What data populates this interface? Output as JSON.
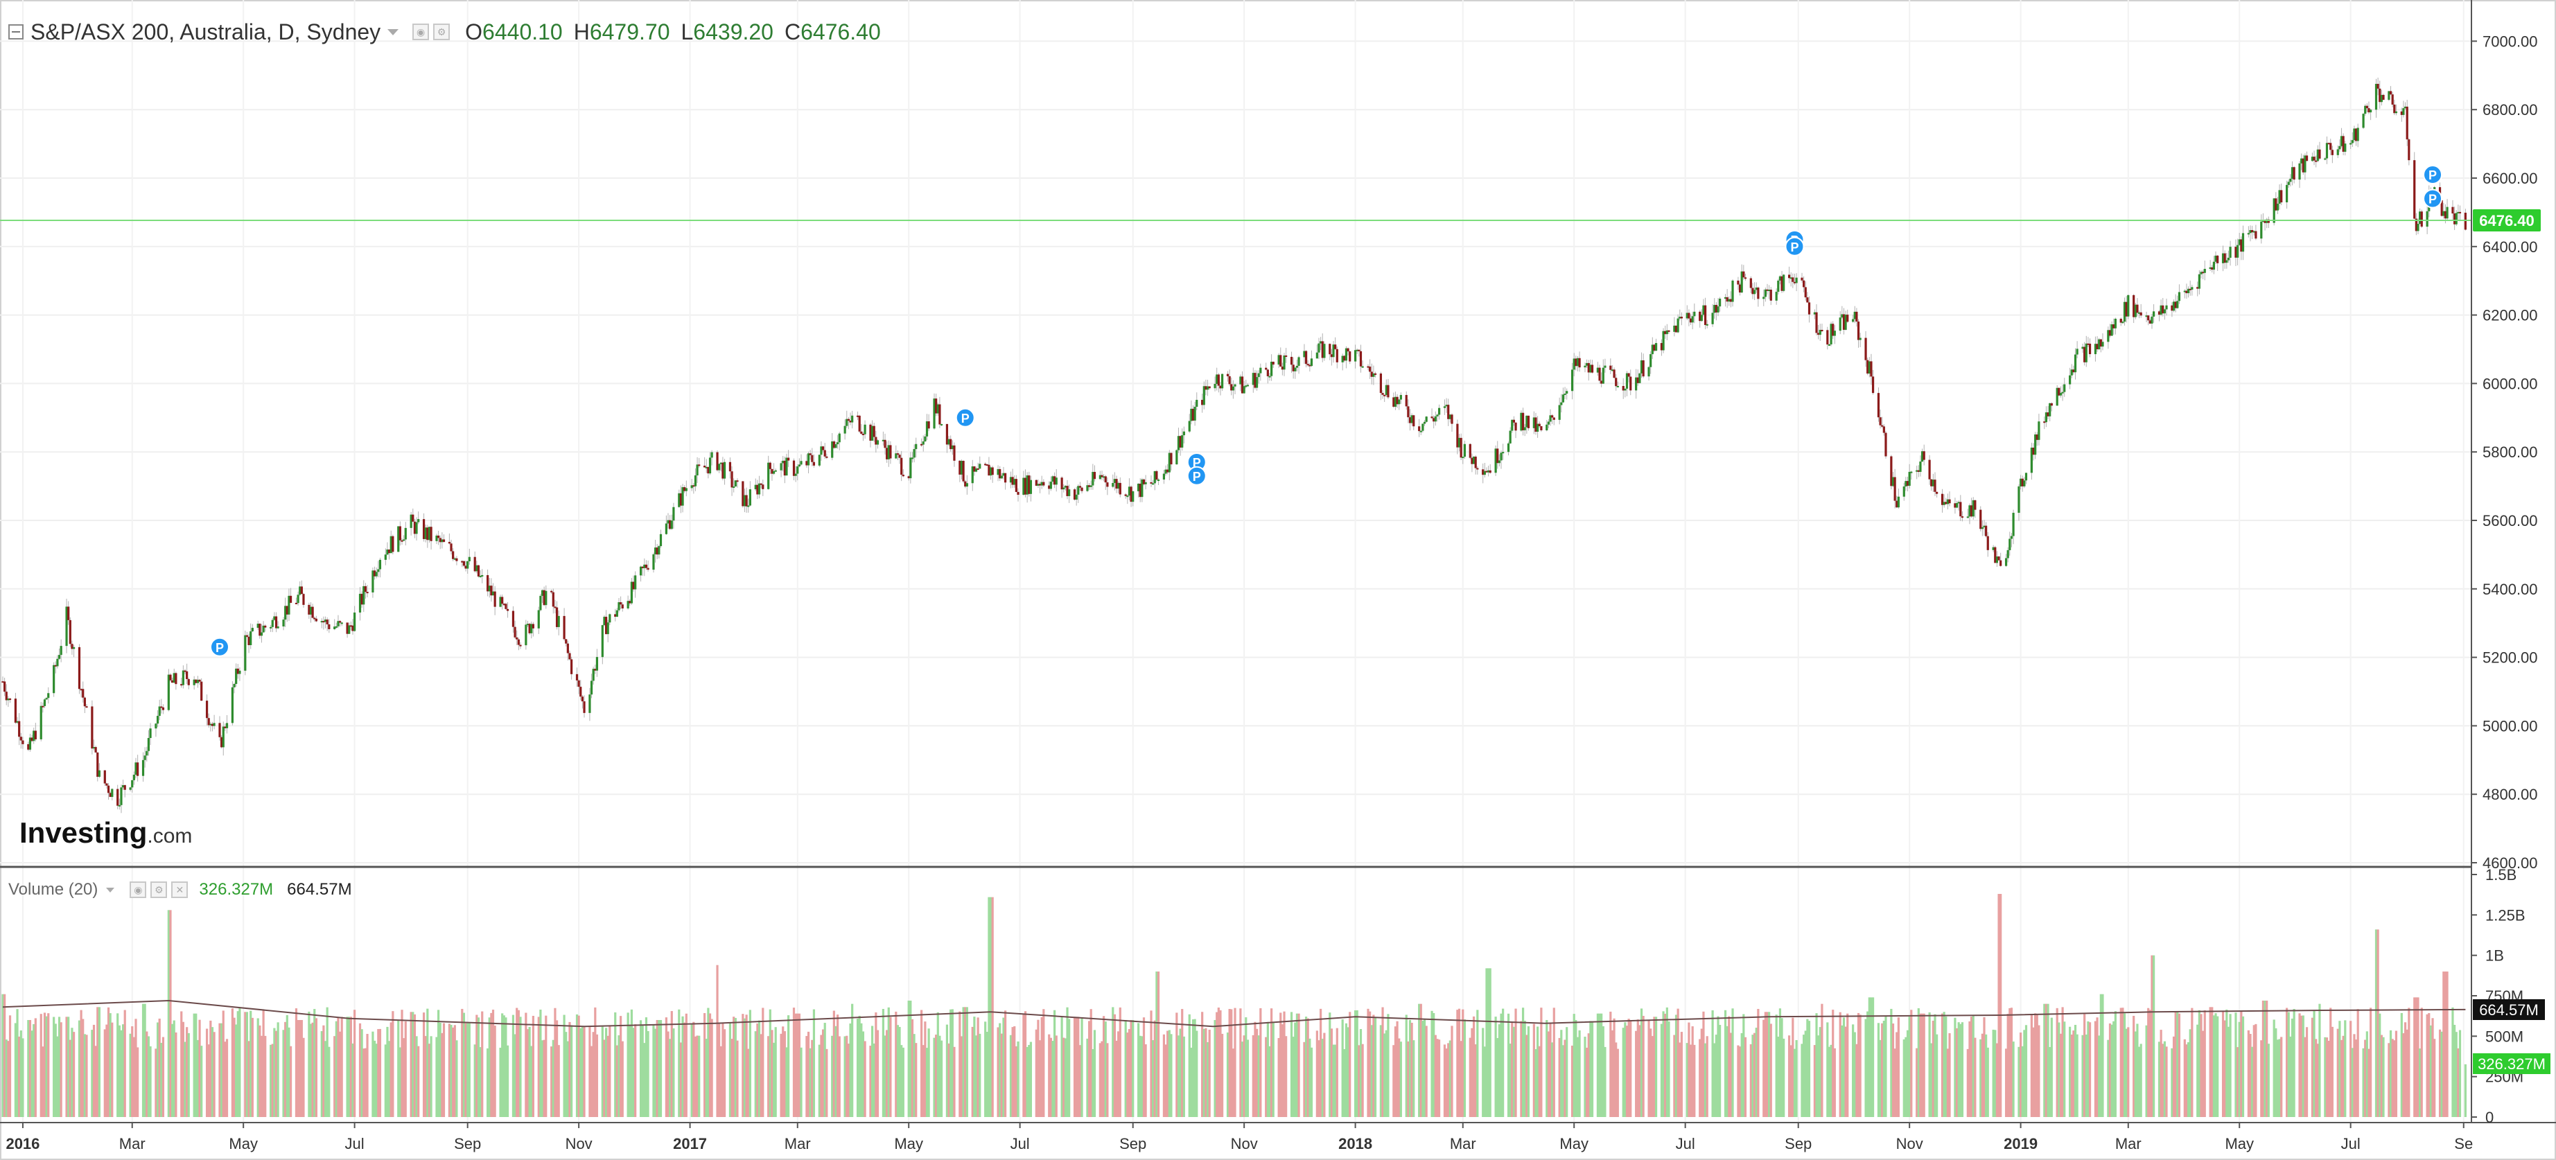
{
  "header": {
    "symbol_title": "S&P/ASX 200, Australia, D, Sydney",
    "ohlc": [
      {
        "label": "O",
        "value": "6440.10"
      },
      {
        "label": "H",
        "value": "6479.70"
      },
      {
        "label": "L",
        "value": "6439.20"
      },
      {
        "label": "C",
        "value": "6476.40"
      }
    ]
  },
  "volume_header": {
    "title": "Volume (20)",
    "current": "326.327M",
    "ma": "664.57M"
  },
  "watermark": {
    "brand": "Investing",
    "suffix": ".com"
  },
  "price_tag": "6476.40",
  "volume_tags": {
    "ma": "664.57M",
    "current": "326.327M"
  },
  "colors": {
    "up": "#2e8b2e",
    "down": "#8b1a1a",
    "vol_up": "#9edc9e",
    "vol_down": "#e8a0a0",
    "last_price_line": "#7cdd7c",
    "tag_green": "#2ecc2e",
    "marker": "#2196f3"
  },
  "chart_data": [
    {
      "type": "candlestick",
      "title": "S&P/ASX 200, Australia, D, Sydney",
      "xlabel": "",
      "ylabel": "",
      "x_ticks": [
        "2016",
        "Mar",
        "May",
        "Jul",
        "Sep",
        "Nov",
        "2017",
        "Mar",
        "May",
        "Jul",
        "Sep",
        "Nov",
        "2018",
        "Mar",
        "May",
        "Jul",
        "Sep",
        "Nov",
        "2019",
        "Mar",
        "May",
        "Jul",
        "Se"
      ],
      "x_range": [
        "2015-12-21",
        "2019-09-03"
      ],
      "y_ticks": [
        7000,
        6800,
        6600,
        6400,
        6200,
        6000,
        5800,
        5600,
        5400,
        5200,
        5000,
        4800,
        4600
      ],
      "ylim": [
        4600,
        7100
      ],
      "grid": true,
      "last_price": 6476.4,
      "series": [
        {
          "name": "S&P/ASX 200",
          "x": [
            "2015-12-21",
            "2016-01-04",
            "2016-01-18",
            "2016-01-25",
            "2016-02-12",
            "2016-02-22",
            "2016-03-07",
            "2016-03-21",
            "2016-04-04",
            "2016-04-18",
            "2016-05-02",
            "2016-05-16",
            "2016-06-01",
            "2016-06-15",
            "2016-06-28",
            "2016-07-15",
            "2016-08-01",
            "2016-08-15",
            "2016-09-01",
            "2016-09-15",
            "2016-10-01",
            "2016-10-15",
            "2016-11-04",
            "2016-11-15",
            "2016-12-01",
            "2016-12-15",
            "2017-01-01",
            "2017-01-15",
            "2017-02-01",
            "2017-02-15",
            "2017-03-01",
            "2017-03-15",
            "2017-04-01",
            "2017-04-15",
            "2017-05-01",
            "2017-05-15",
            "2017-06-01",
            "2017-06-15",
            "2017-07-01",
            "2017-07-15",
            "2017-08-01",
            "2017-08-15",
            "2017-09-01",
            "2017-09-15",
            "2017-10-01",
            "2017-10-15",
            "2017-11-01",
            "2017-11-15",
            "2017-12-01",
            "2017-12-15",
            "2018-01-01",
            "2018-01-15",
            "2018-02-05",
            "2018-02-20",
            "2018-03-01",
            "2018-03-15",
            "2018-04-01",
            "2018-04-15",
            "2018-05-01",
            "2018-05-15",
            "2018-06-01",
            "2018-06-15",
            "2018-07-01",
            "2018-07-15",
            "2018-08-01",
            "2018-08-15",
            "2018-08-30",
            "2018-09-15",
            "2018-10-01",
            "2018-10-11",
            "2018-10-25",
            "2018-11-08",
            "2018-11-21",
            "2018-12-07",
            "2018-12-21",
            "2019-01-04",
            "2019-01-15",
            "2019-02-01",
            "2019-02-15",
            "2019-03-01",
            "2019-03-15",
            "2019-04-01",
            "2019-04-15",
            "2019-05-01",
            "2019-05-15",
            "2019-06-01",
            "2019-06-15",
            "2019-07-01",
            "2019-07-15",
            "2019-07-31",
            "2019-08-06",
            "2019-08-15",
            "2019-08-22",
            "2019-09-02"
          ],
          "close": [
            5130,
            4920,
            5150,
            5320,
            4850,
            4790,
            4900,
            5120,
            5150,
            4940,
            5250,
            5300,
            5380,
            5300,
            5280,
            5500,
            5590,
            5540,
            5480,
            5380,
            5250,
            5400,
            5050,
            5290,
            5400,
            5540,
            5720,
            5780,
            5650,
            5760,
            5750,
            5800,
            5900,
            5830,
            5740,
            5940,
            5720,
            5750,
            5700,
            5720,
            5680,
            5730,
            5680,
            5720,
            5880,
            6020,
            5990,
            6050,
            6060,
            6100,
            6080,
            6000,
            5880,
            5920,
            5800,
            5750,
            5900,
            5850,
            6050,
            6030,
            6000,
            6100,
            6200,
            6200,
            6300,
            6260,
            6320,
            6130,
            6200,
            6020,
            5650,
            5780,
            5640,
            5630,
            5450,
            5760,
            5920,
            6080,
            6120,
            6230,
            6190,
            6260,
            6350,
            6400,
            6480,
            6620,
            6680,
            6700,
            6860,
            6780,
            6450,
            6560,
            6500,
            6460
          ],
          "high": [
            5170,
            4970,
            5190,
            5350,
            4900,
            4830,
            4950,
            5160,
            5200,
            4990,
            5290,
            5340,
            5420,
            5350,
            5330,
            5540,
            5640,
            5590,
            5520,
            5430,
            5300,
            5440,
            5110,
            5330,
            5440,
            5580,
            5770,
            5820,
            5690,
            5800,
            5790,
            5840,
            5960,
            5870,
            5790,
            5980,
            5770,
            5790,
            5750,
            5760,
            5720,
            5770,
            5720,
            5760,
            5920,
            6060,
            6030,
            6090,
            6100,
            6150,
            6120,
            6050,
            5920,
            5970,
            5840,
            5790,
            5950,
            5890,
            6090,
            6070,
            6040,
            6140,
            6250,
            6240,
            6340,
            6300,
            6360,
            6170,
            6240,
            6060,
            5700,
            5820,
            5680,
            5670,
            5490,
            5800,
            5960,
            6120,
            6160,
            6270,
            6230,
            6300,
            6390,
            6440,
            6520,
            6660,
            6720,
            6740,
            6880,
            6820,
            6500,
            6600,
            6540,
            6500
          ],
          "low": [
            5080,
            4870,
            5100,
            5280,
            4800,
            4740,
            4850,
            5070,
            5100,
            4890,
            5200,
            5250,
            5330,
            5250,
            5230,
            5450,
            5540,
            5490,
            5430,
            5330,
            5200,
            5350,
            5000,
            5240,
            5350,
            5490,
            5670,
            5730,
            5600,
            5710,
            5700,
            5750,
            5850,
            5780,
            5690,
            5890,
            5670,
            5700,
            5650,
            5670,
            5630,
            5680,
            5630,
            5670,
            5830,
            5970,
            5940,
            6000,
            6010,
            6050,
            6030,
            5950,
            5830,
            5870,
            5750,
            5700,
            5850,
            5800,
            6000,
            5980,
            5950,
            6050,
            6150,
            6150,
            6250,
            6210,
            6270,
            6080,
            6150,
            5970,
            5600,
            5730,
            5590,
            5580,
            5400,
            5710,
            5870,
            6030,
            6070,
            6180,
            6140,
            6210,
            6300,
            6350,
            6430,
            6570,
            6630,
            6650,
            6800,
            6730,
            6400,
            6510,
            6450,
            6410
          ]
        }
      ]
    },
    {
      "type": "bar",
      "title": "Volume (20)",
      "xlabel": "",
      "ylabel": "",
      "y_ticks": [
        "1.5B",
        "1.25B",
        "1B",
        "750M",
        "500M",
        "250M",
        "0"
      ],
      "ylim": [
        0,
        1500
      ],
      "grid": true,
      "series": [
        {
          "name": "Volume",
          "x": [
            "2015-12-21",
            "2016-01-04",
            "2016-01-25",
            "2016-02-12",
            "2016-03-07",
            "2016-03-21",
            "2016-04-04",
            "2016-04-18",
            "2016-05-02",
            "2016-06-01",
            "2016-06-28",
            "2016-08-01",
            "2016-09-01",
            "2016-10-01",
            "2016-11-04",
            "2016-12-15",
            "2017-01-15",
            "2017-03-01",
            "2017-04-01",
            "2017-05-01",
            "2017-06-01",
            "2017-06-15",
            "2017-08-01",
            "2017-09-01",
            "2017-09-15",
            "2017-10-15",
            "2017-12-01",
            "2018-01-01",
            "2018-02-05",
            "2018-03-15",
            "2018-04-15",
            "2018-05-15",
            "2018-06-15",
            "2018-07-15",
            "2018-08-15",
            "2018-09-15",
            "2018-10-11",
            "2018-11-08",
            "2018-12-21",
            "2019-01-15",
            "2019-02-15",
            "2019-03-15",
            "2019-04-15",
            "2019-05-15",
            "2019-06-15",
            "2019-07-15",
            "2019-08-06",
            "2019-08-22",
            "2019-09-02"
          ],
          "values": [
            760,
            600,
            620,
            680,
            700,
            1280,
            640,
            580,
            650,
            600,
            620,
            650,
            580,
            620,
            560,
            600,
            940,
            640,
            700,
            720,
            680,
            1360,
            620,
            600,
            900,
            600,
            640,
            660,
            700,
            920,
            600,
            640,
            620,
            660,
            650,
            700,
            740,
            640,
            1380,
            700,
            760,
            1000,
            680,
            720,
            700,
            1160,
            740,
            900,
            326.327
          ]
        },
        {
          "name": "MA 20",
          "x": [
            "2015-12-21",
            "2016-03-21",
            "2016-06-28",
            "2016-11-04",
            "2017-01-15",
            "2017-06-15",
            "2017-10-15",
            "2018-01-01",
            "2018-04-15",
            "2018-08-15",
            "2018-12-21",
            "2019-03-15",
            "2019-06-15",
            "2019-09-02"
          ],
          "values": [
            680,
            720,
            610,
            560,
            580,
            650,
            560,
            620,
            580,
            620,
            630,
            650,
            660,
            664.57
          ]
        }
      ]
    }
  ],
  "markers": [
    {
      "label": "P",
      "date": "2016-04-18",
      "price": 5230
    },
    {
      "label": "P",
      "date": "2017-06-01",
      "price": 5900
    },
    {
      "label": "P",
      "date": "2017-10-06",
      "price": 5770
    },
    {
      "label": "P",
      "date": "2017-10-06",
      "price": 5730
    },
    {
      "label": "P",
      "date": "2018-08-30",
      "price": 6420
    },
    {
      "label": "P",
      "date": "2018-08-30",
      "price": 6400
    },
    {
      "label": "P",
      "date": "2019-08-15",
      "price": 6610
    },
    {
      "label": "P",
      "date": "2019-08-15",
      "price": 6540
    }
  ]
}
